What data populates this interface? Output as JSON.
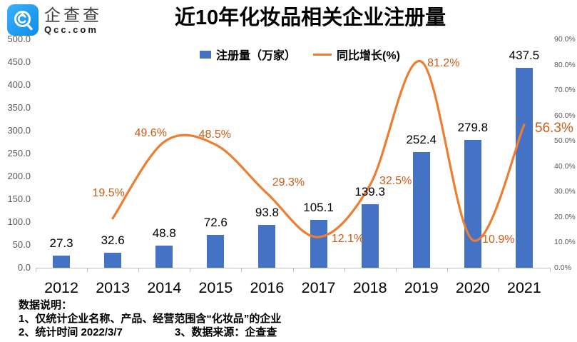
{
  "logo": {
    "name": "企查查",
    "domain": "Qcc.com"
  },
  "title": "近10年化妆品相关企业注册量",
  "legend": {
    "bar_label": "注册量（万家）",
    "line_label": "同比增长(%)"
  },
  "colors": {
    "bar": "#4472C4",
    "line": "#ED7D31",
    "growth_label": "#CC5C15",
    "axis_label": "#595959",
    "axis_line": "#BFBFBF",
    "logo_blue": "#1D9BF1"
  },
  "chart_data": {
    "type": "bar+line",
    "title": "近10年化妆品相关企业注册量",
    "categories": [
      "2012",
      "2013",
      "2014",
      "2015",
      "2016",
      "2017",
      "2018",
      "2019",
      "2020",
      "2021"
    ],
    "series": [
      {
        "name": "注册量（万家）",
        "type": "bar",
        "axis": "left",
        "values": [
          27.3,
          32.6,
          48.8,
          72.6,
          93.8,
          105.1,
          139.3,
          252.4,
          279.8,
          437.5
        ]
      },
      {
        "name": "同比增长(%)",
        "type": "line",
        "axis": "right",
        "values": [
          null,
          19.5,
          49.6,
          48.5,
          29.3,
          12.1,
          32.5,
          81.2,
          10.9,
          56.3
        ]
      }
    ],
    "bar_value_labels": [
      "27.3",
      "32.6",
      "48.8",
      "72.6",
      "93.8",
      "105.1",
      "139.3",
      "252.4",
      "279.8",
      "437.5"
    ],
    "growth_labels": [
      null,
      "19.5%",
      "49.6%",
      "48.5%",
      "29.3%",
      "12.1%",
      "32.5%",
      "81.2%",
      "10.9%",
      "56.3%"
    ],
    "left_axis": {
      "min": 0,
      "max": 500,
      "step": 50,
      "tick_labels": [
        "500.0",
        "450.0",
        "400.0",
        "350.0",
        "300.0",
        "250.0",
        "200.0",
        "150.0",
        "100.0",
        "50.0",
        "0.0"
      ]
    },
    "right_axis": {
      "min": 0,
      "max": 90,
      "step": 10,
      "tick_labels": [
        "90.0%",
        "80.0%",
        "70.0%",
        "60.0%",
        "50.0%",
        "40.0%",
        "30.0%",
        "20.0%",
        "10.0%",
        "0.0%"
      ]
    },
    "grid": false,
    "legend_position": "top"
  },
  "notes": {
    "heading": "数据说明：",
    "line1": "1、仅统计企业名称、产品、经营范围含“化妆品”的企业",
    "line2": "2、统计时间 2022/3/7",
    "line3": "3、数据来源：企查查"
  }
}
